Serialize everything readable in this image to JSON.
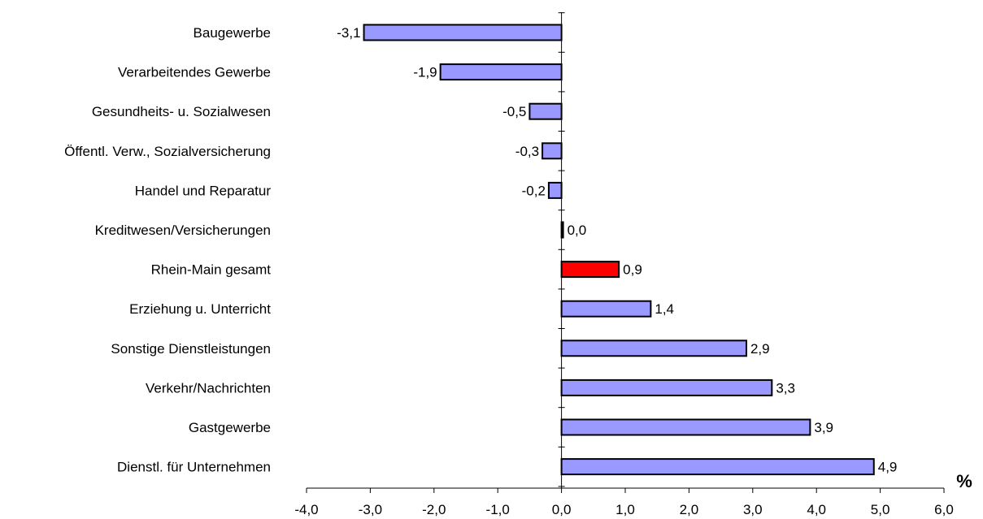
{
  "chart_data": {
    "type": "bar",
    "orientation": "horizontal",
    "categories": [
      "Baugewerbe",
      "Verarbeitendes Gewerbe",
      "Gesundheits- u. Sozialwesen",
      "Öffentl. Verw., Sozialversicherung",
      "Handel und Reparatur",
      "Kreditwesen/Versicherungen",
      "Rhein-Main gesamt",
      "Erziehung u. Unterricht",
      "Sonstige Dienstleistungen",
      "Verkehr/Nachrichten",
      "Gastgewerbe",
      "Dienstl. für Unternehmen"
    ],
    "values": [
      -3.1,
      -1.9,
      -0.5,
      -0.3,
      -0.2,
      0.0,
      0.9,
      1.4,
      2.9,
      3.3,
      3.9,
      4.9
    ],
    "value_labels": [
      "-3,1",
      "-1,9",
      "-0,5",
      "-0,3",
      "-0,2",
      "0,0",
      "0,9",
      "1,4",
      "2,9",
      "3,3",
      "3,9",
      "4,9"
    ],
    "bar_colors": [
      "#9999ff",
      "#9999ff",
      "#9999ff",
      "#9999ff",
      "#9999ff",
      "#9999ff",
      "#ff0000",
      "#9999ff",
      "#9999ff",
      "#9999ff",
      "#9999ff",
      "#9999ff"
    ],
    "xlim": [
      -4.0,
      6.0
    ],
    "xticks": [
      -4.0,
      -3.0,
      -2.0,
      -1.0,
      0.0,
      1.0,
      2.0,
      3.0,
      4.0,
      5.0,
      6.0
    ],
    "xtick_labels": [
      "-4,0",
      "-3,0",
      "-2,0",
      "-1,0",
      "0,0",
      "1,0",
      "2,0",
      "3,0",
      "4,0",
      "5,0",
      "6,0"
    ],
    "xlabel": "%",
    "title": "",
    "ylabel": "",
    "grid": false,
    "legend": "none"
  }
}
